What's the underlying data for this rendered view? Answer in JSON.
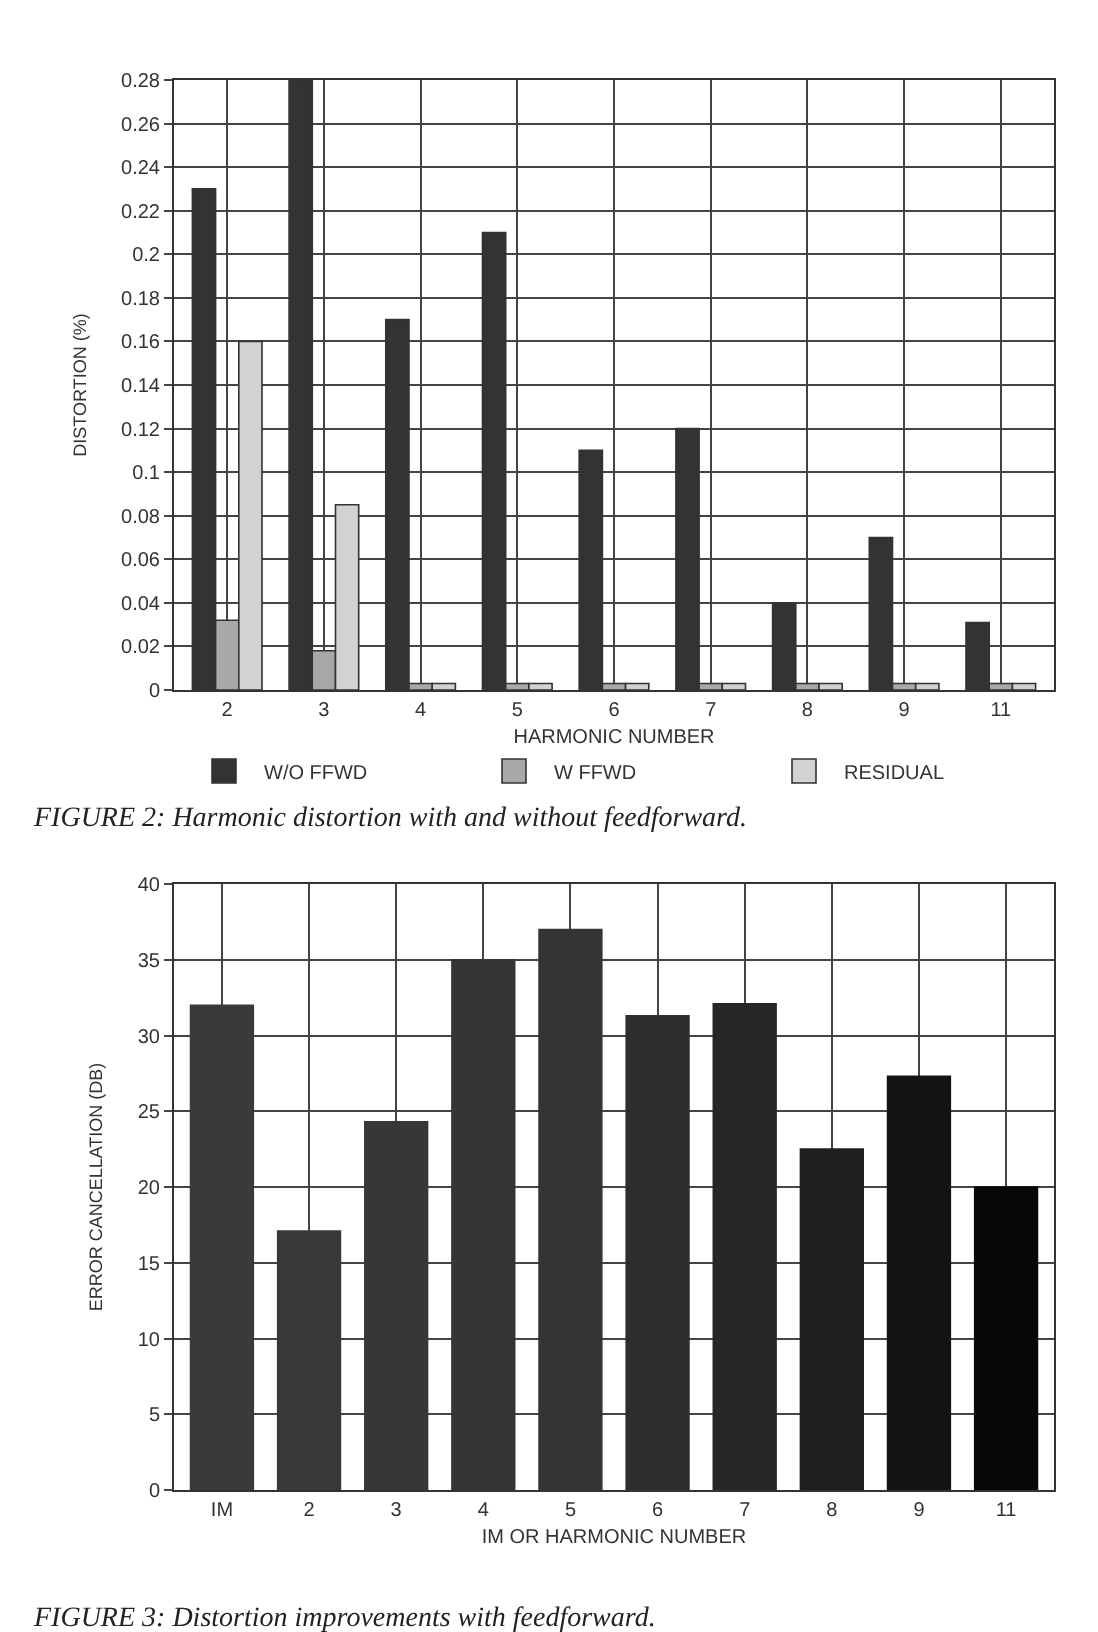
{
  "chart_data": [
    {
      "type": "bar",
      "xlabel": "HARMONIC NUMBER",
      "ylabel": "DISTORTION (%)",
      "categories": [
        "2",
        "3",
        "4",
        "5",
        "6",
        "7",
        "8",
        "9",
        "11"
      ],
      "series": [
        {
          "name": "W/O FFWD",
          "color": "#333333",
          "values": [
            0.23,
            0.28,
            0.17,
            0.21,
            0.11,
            0.12,
            0.04,
            0.07,
            0.031
          ]
        },
        {
          "name": "W FFWD",
          "color": "#a8a8a8",
          "values": [
            0.032,
            0.018,
            0.003,
            0.003,
            0.003,
            0.003,
            0.003,
            0.003,
            0.003
          ]
        },
        {
          "name": "RESIDUAL",
          "color": "#d2d2d2",
          "values": [
            0.16,
            0.085,
            0.003,
            0.003,
            0.003,
            0.003,
            0.003,
            0.003,
            0.003
          ]
        }
      ],
      "ylim": [
        0,
        0.28
      ],
      "yticks": [
        0,
        0.02,
        0.04,
        0.06,
        0.08,
        0.1,
        0.12,
        0.14,
        0.16,
        0.18,
        0.2,
        0.22,
        0.24,
        0.26,
        0.28
      ],
      "grid": true,
      "legend": "bottom",
      "annotations": [
        "FIGURE 2: Harmonic distortion with and without feedforward."
      ]
    },
    {
      "type": "bar",
      "xlabel": "IM OR HARMONIC NUMBER",
      "ylabel": "ERROR CANCELLATION (DB)",
      "categories": [
        "IM",
        "2",
        "3",
        "4",
        "5",
        "6",
        "7",
        "8",
        "9",
        "11"
      ],
      "series": [
        {
          "colors": [
            "#3a3a3a",
            "#383838",
            "#373737",
            "#353535",
            "#343434",
            "#2e2e2e",
            "#262626",
            "#1e1e1e",
            "#141414",
            "#080808"
          ],
          "values": [
            32,
            17.1,
            24.3,
            35,
            37,
            31.3,
            32.1,
            22.5,
            27.3,
            20
          ]
        }
      ],
      "ylim": [
        0,
        40
      ],
      "yticks": [
        0,
        5,
        10,
        15,
        20,
        25,
        30,
        35,
        40
      ],
      "grid": true,
      "annotations": [
        "FIGURE 3: Distortion improvements with feedforward."
      ]
    }
  ]
}
